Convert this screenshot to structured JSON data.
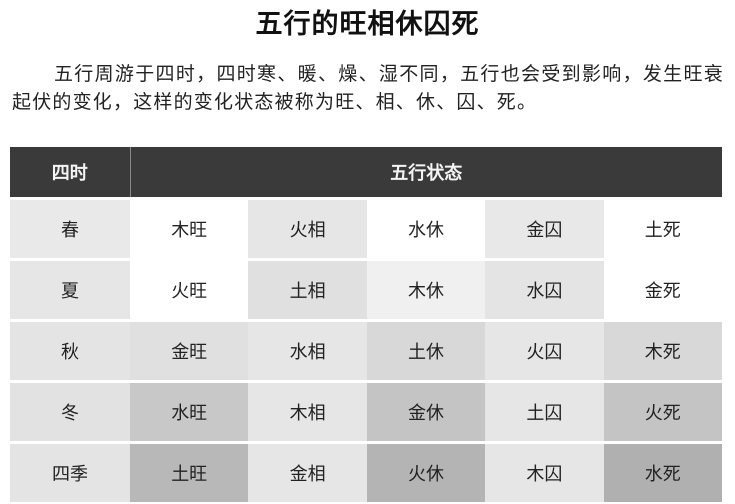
{
  "title": "五行的旺相休囚死",
  "paragraph": "五行周游于四时，四时寒、暖、燥、湿不同，五行也会受到影响，发生旺衰起伏的变化，这样的变化状态被称为旺、相、休、囚、死。",
  "table": {
    "headers": [
      "四时",
      "五行状态"
    ],
    "rows": [
      {
        "season": "春",
        "cells": [
          "木旺",
          "火相",
          "水休",
          "金囚",
          "土死"
        ]
      },
      {
        "season": "夏",
        "cells": [
          "火旺",
          "土相",
          "木休",
          "水囚",
          "金死"
        ]
      },
      {
        "season": "秋",
        "cells": [
          "金旺",
          "水相",
          "土休",
          "火囚",
          "木死"
        ]
      },
      {
        "season": "冬",
        "cells": [
          "水旺",
          "木相",
          "金休",
          "土囚",
          "火死"
        ]
      },
      {
        "season": "四季",
        "cells": [
          "土旺",
          "金相",
          "火休",
          "木囚",
          "水死"
        ]
      }
    ],
    "header_color": "#3a3a3a"
  }
}
